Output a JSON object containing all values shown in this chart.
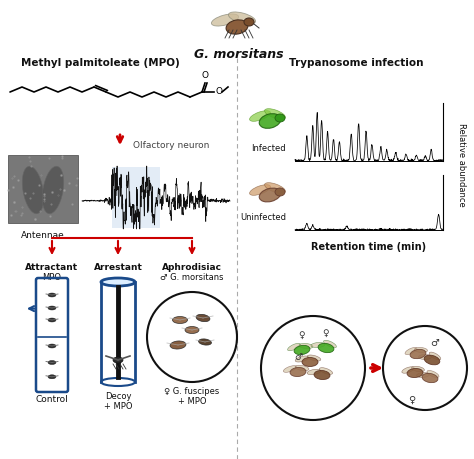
{
  "title_fly": "G. morsitans",
  "left_title": "Methyl palmitoleate (MPO)",
  "right_title": "Trypanosome infection",
  "olfactory_label": "Olfactory neuron",
  "antennae_label": "Antennae",
  "attractant_label": "Attractant",
  "arrestant_label": "Arrestant",
  "aphrodisiac_label": "Aphrodisiac",
  "mpo_label": "MPO",
  "decoy_label": "Decoy\n+ MPO",
  "control_label": "Control",
  "infected_label": "Infected",
  "uninfected_label": "Uninfected",
  "retention_label": "Retention time (min)",
  "rel_abund_label": "Relative abundance",
  "g_morsitans_label": "♂ G. morsitans",
  "g_fuscipes_label": "♀ G. fuscipes\n+ MPO",
  "bg_color": "#ffffff",
  "red_color": "#cc0000",
  "blue_color": "#1a4a8a",
  "divider_color": "#aaaaaa",
  "text_color": "#111111",
  "light_blue_highlight": "#ccddf0",
  "fig_w": 4.74,
  "fig_h": 4.59,
  "dpi": 100
}
